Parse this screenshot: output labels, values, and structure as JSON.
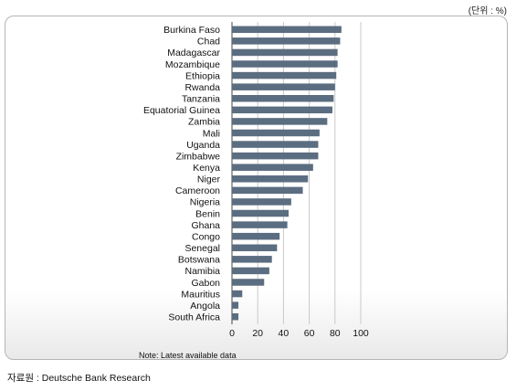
{
  "unit_label": "(단위 : %)",
  "note": "Note: Latest available data",
  "source": "자료원 : Deutsche Bank Research",
  "colors": {
    "bar": "#5b6d80",
    "gridline": "#c9c9c9"
  },
  "chart_data": {
    "type": "bar",
    "orientation": "horizontal",
    "categories": [
      "Burkina Faso",
      "Chad",
      "Madagascar",
      "Mozambique",
      "Ethiopia",
      "Rwanda",
      "Tanzania",
      "Equatorial Guinea",
      "Zambia",
      "Mali",
      "Uganda",
      "Zimbabwe",
      "Kenya",
      "Niger",
      "Cameroon",
      "Nigeria",
      "Benin",
      "Ghana",
      "Congo",
      "Senegal",
      "Botswana",
      "Namibia",
      "Gabon",
      "Mauritius",
      "Angola",
      "South Africa"
    ],
    "values": [
      85,
      84,
      82,
      82,
      81,
      80,
      79,
      78,
      74,
      68,
      67,
      67,
      63,
      59,
      55,
      46,
      44,
      43,
      37,
      35,
      31,
      29,
      25,
      8,
      5,
      5
    ],
    "xticks": [
      0,
      20,
      40,
      60,
      80,
      100
    ],
    "xlim": [
      0,
      100
    ],
    "grid": true,
    "title": "",
    "xlabel": "",
    "ylabel": ""
  }
}
